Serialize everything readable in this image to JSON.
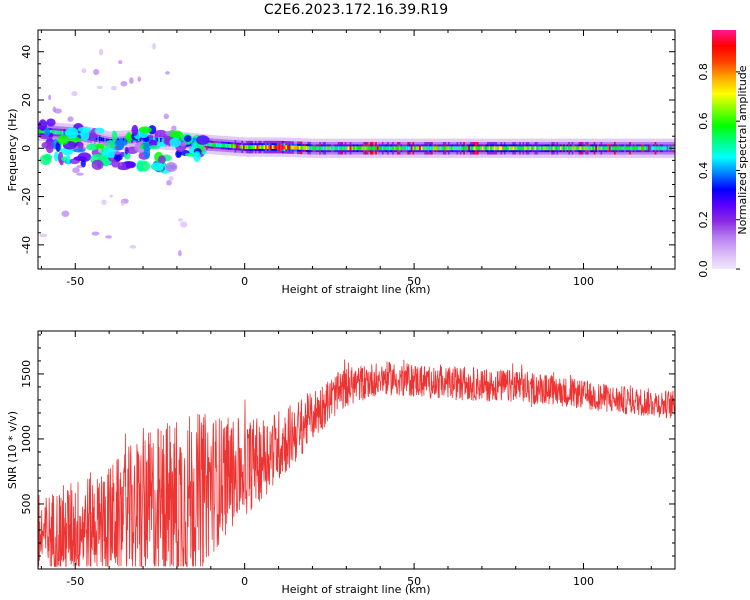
{
  "title": "C2E6.2023.172.16.39.R19",
  "colors": {
    "snr_line": "#ee3333",
    "colormap": [
      "#f0e8ff",
      "#d9b8f5",
      "#b57cf2",
      "#8a2be2",
      "#5a00ff",
      "#0000ff",
      "#0080ff",
      "#00ffff",
      "#00ff80",
      "#00ff00",
      "#80ff00",
      "#ffff00",
      "#ffaa00",
      "#ff4000",
      "#ff0000",
      "#ff1493"
    ]
  },
  "chart_data": [
    {
      "type": "heatmap",
      "xlabel": "Height of straight line (km)",
      "ylabel": "Frequency (Hz)",
      "xlim": [
        -61,
        127
      ],
      "ylim": [
        -50,
        49
      ],
      "xticks": [
        -50,
        0,
        50,
        100
      ],
      "yticks": [
        -40,
        -20,
        0,
        20,
        40
      ],
      "colorbar": {
        "label": "Normalized spectral amplitude",
        "range": [
          0.0,
          0.97
        ],
        "ticks": [
          "0.0",
          "0.2",
          "0.4",
          "0.6",
          "0.8"
        ]
      },
      "ridge": {
        "description_values": "dominant frequency ridge near 0 Hz",
        "x": [
          -60,
          -50,
          -40,
          -30,
          -20,
          -10,
          0,
          10,
          20,
          40,
          60,
          80,
          100,
          127
        ],
        "center_freq": [
          7,
          6,
          3,
          4,
          3,
          1.5,
          0.5,
          0.5,
          0,
          0,
          0,
          0,
          0,
          0
        ],
        "amplitude": [
          0.55,
          0.45,
          0.3,
          0.4,
          0.35,
          0.55,
          0.6,
          0.85,
          0.6,
          0.6,
          0.6,
          0.65,
          0.6,
          0.5
        ]
      }
    },
    {
      "type": "line",
      "xlabel": "Height of straight line (km)",
      "ylabel": "SNR (10 * v/v)",
      "xlim": [
        -61,
        127
      ],
      "ylim": [
        0,
        1830
      ],
      "xticks": [
        -50,
        0,
        50,
        100
      ],
      "yticks": [
        500,
        1000,
        1500
      ],
      "series": [
        {
          "trend_x": [
            -61,
            -50,
            -40,
            -30,
            -20,
            -15,
            -10,
            -5,
            0,
            5,
            10,
            15,
            20,
            25,
            30,
            40,
            50,
            60,
            70,
            80,
            90,
            100,
            110,
            120,
            127
          ],
          "trend_y": [
            250,
            320,
            380,
            450,
            500,
            560,
            650,
            720,
            780,
            850,
            950,
            1050,
            1180,
            1300,
            1400,
            1470,
            1450,
            1430,
            1420,
            1400,
            1380,
            1340,
            1300,
            1280,
            1260
          ],
          "noise_amplitude": [
            300,
            380,
            420,
            600,
            700,
            650,
            550,
            450,
            380,
            320,
            280,
            240,
            200,
            170,
            150,
            130,
            130,
            130,
            130,
            130,
            120,
            110,
            110,
            110,
            110
          ]
        }
      ]
    }
  ]
}
